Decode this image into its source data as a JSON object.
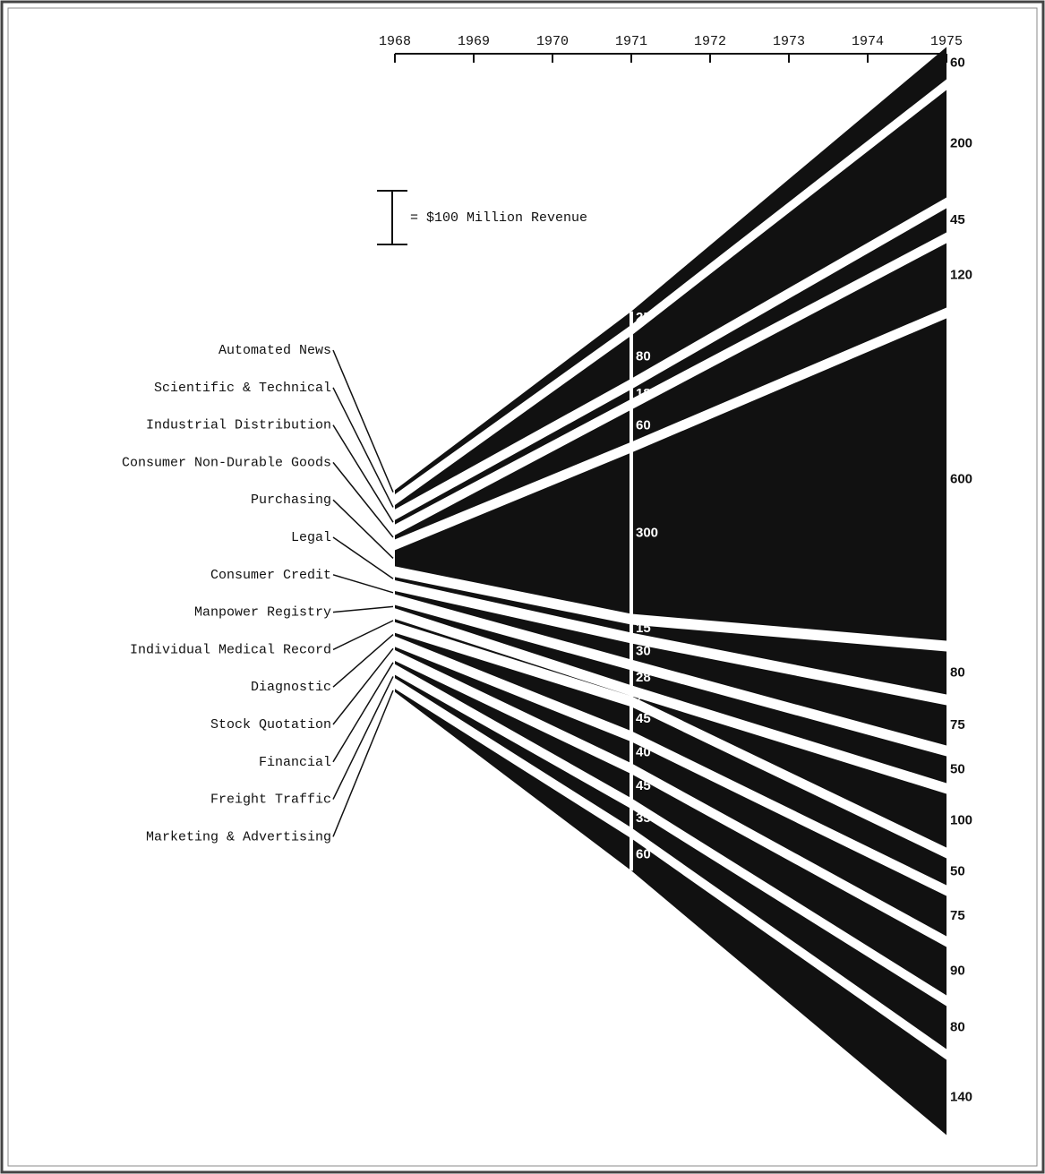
{
  "chart_data": {
    "type": "flow",
    "xlim": [
      1968,
      1975
    ],
    "xticks": [
      1968,
      1969,
      1970,
      1971,
      1972,
      1973,
      1974,
      1975
    ],
    "categories": [
      "Automated News",
      "Scientific & Technical",
      "Industrial Distribution",
      "Consumer Non-Durable Goods",
      "Purchasing",
      "Legal",
      "Consumer Credit",
      "Manpower Registry",
      "Individual Medical Record",
      "Diagnostic",
      "Stock Quotation",
      "Financial",
      "Freight Traffic",
      "Marketing & Advertising"
    ],
    "stages": [
      {
        "x": 1968,
        "values": [
          8,
          8,
          8,
          8,
          30,
          6,
          6,
          6,
          6,
          6,
          6,
          6,
          6,
          6
        ]
      },
      {
        "x": 1971,
        "values": [
          25,
          80,
          18,
          60,
          300,
          15,
          30,
          28,
          null,
          45,
          40,
          45,
          35,
          60
        ],
        "value_labels": [
          "25",
          "80",
          "18",
          "60",
          "300",
          "15",
          "30",
          "28",
          "☆",
          "45",
          "40",
          "45",
          "35",
          "60"
        ]
      },
      {
        "x": 1975,
        "values": [
          60,
          200,
          45,
          120,
          600,
          80,
          75,
          50,
          100,
          50,
          75,
          90,
          80,
          140
        ]
      }
    ],
    "color": "#111111",
    "scale_value": 100,
    "scale_label": "= $100 Million Revenue"
  }
}
